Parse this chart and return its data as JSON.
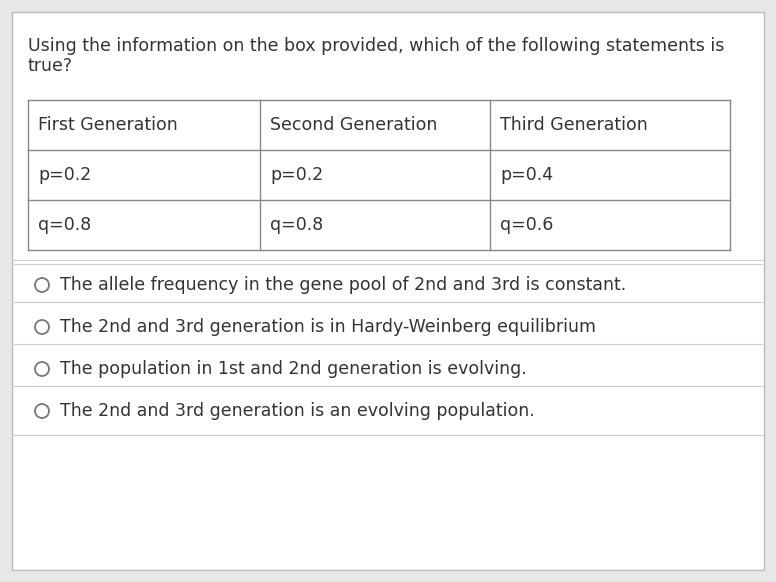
{
  "question_line1": "Using the information on the box provided, which of the following statements is",
  "question_line2": "true?",
  "table_headers": [
    "First Generation",
    "Second Generation",
    "Third Generation"
  ],
  "table_row1": [
    "p=0.2",
    "p=0.2",
    "p=0.4"
  ],
  "table_row2": [
    "q=0.8",
    "q=0.8",
    "q=0.6"
  ],
  "options": [
    "The allele frequency in the gene pool of 2nd and 3rd is constant.",
    "The 2nd and 3rd generation is in Hardy-Weinberg equilibrium",
    "The population in 1st and 2nd generation is evolving.",
    "The 2nd and 3rd generation is an evolving population."
  ],
  "bg_color": "#e8e8e8",
  "card_color": "#ffffff",
  "text_color": "#333333",
  "border_color": "#bbbbbb",
  "table_border_color": "#888888",
  "separator_color": "#cccccc",
  "circle_color": "#777777",
  "font_size_question": 12.5,
  "font_size_table": 12.5,
  "font_size_options": 12.5
}
